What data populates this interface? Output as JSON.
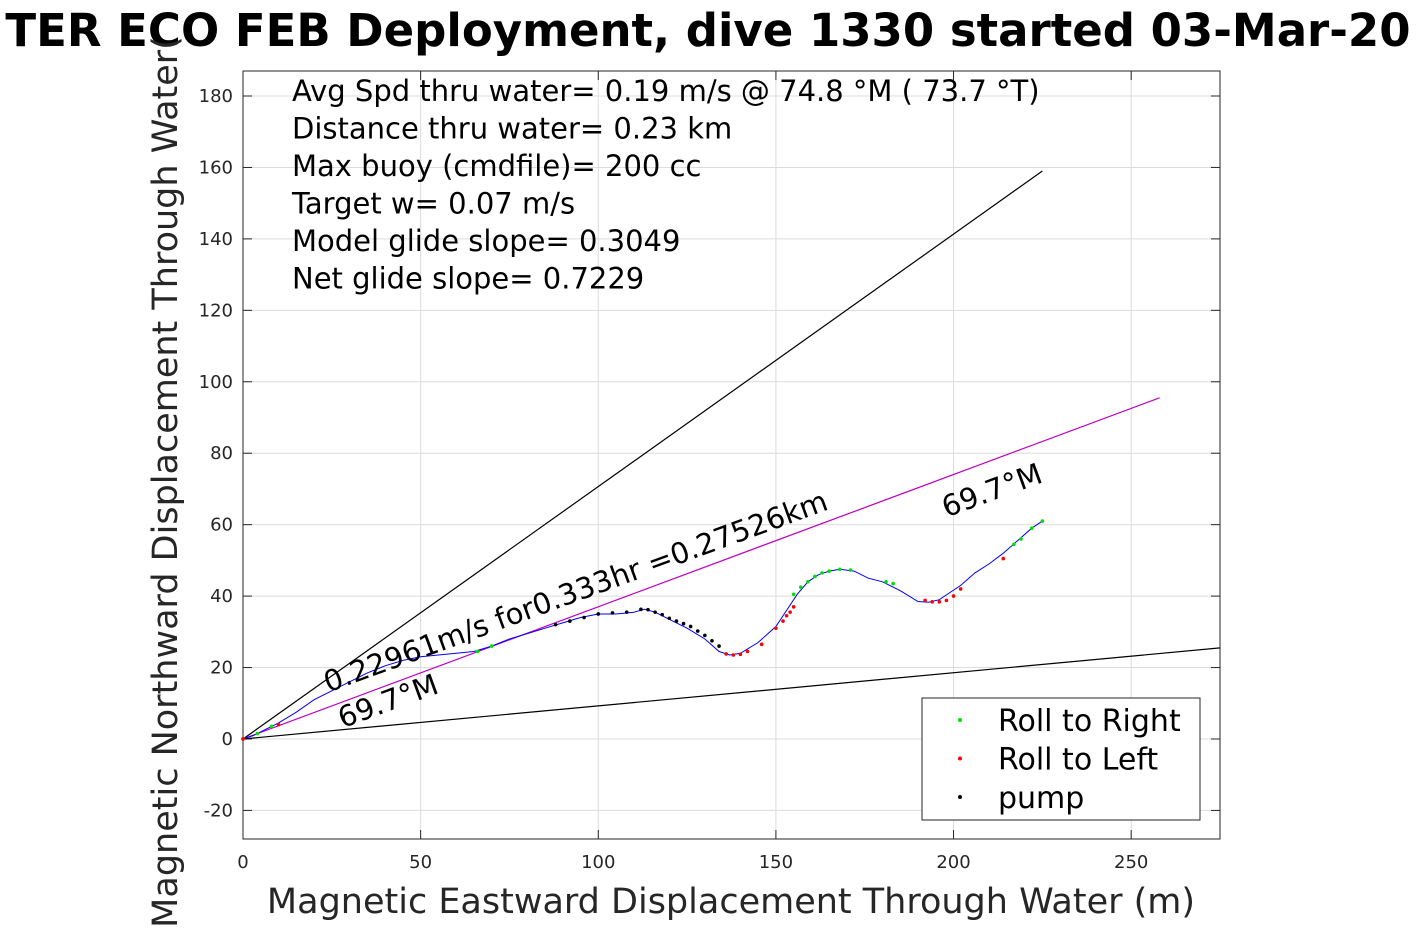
{
  "chart_data": {
    "type": "line",
    "title": "TER ECO FEB Deployment, dive 1330 started 03-Mar-20",
    "xlabel": "Magnetic Eastward Displacement Through Water (m)",
    "ylabel": "Magnetic Northward Displacement Through Water(",
    "xlim": [
      0,
      275
    ],
    "ylim": [
      -28,
      187
    ],
    "xticks": [
      0,
      50,
      100,
      150,
      200,
      250
    ],
    "yticks": [
      -20,
      0,
      20,
      40,
      60,
      80,
      100,
      120,
      140,
      160,
      180
    ],
    "grid": true,
    "legend_position": "bottom-right",
    "info_lines": [
      "Avg Spd thru water=  0.19 m/s @  74.8 °M ( 73.7 °T)",
      "Distance thru water=  0.23 km",
      "Max buoy (cmdfile)= 200 cc",
      "Target w= 0.07 m/s",
      "Model glide slope= 0.3049",
      "Net glide slope= 0.7229"
    ],
    "annotations": [
      {
        "text": "0.22961m/s for0.333hr =0.27526km",
        "x": 24,
        "y": 13,
        "angle_deg": 20.1
      },
      {
        "text": "69.7°M",
        "x": 28,
        "y": 3,
        "angle_deg": 20.1
      },
      {
        "text": "69.7°M",
        "x": 198,
        "y": 62,
        "angle_deg": 20.1
      }
    ],
    "lines": [
      {
        "name": "upper envelope",
        "color": "#000000",
        "x": [
          0,
          225
        ],
        "y": [
          0,
          159
        ]
      },
      {
        "name": "lower envelope",
        "color": "#000000",
        "x": [
          0,
          275
        ],
        "y": [
          0,
          25.5
        ]
      },
      {
        "name": "heading line",
        "color": "#c000c0",
        "x": [
          0,
          258
        ],
        "y": [
          0,
          95.5
        ]
      }
    ],
    "track": {
      "color": "#0000ff",
      "x": [
        0,
        3,
        6,
        10,
        15,
        20,
        25,
        30,
        35,
        40,
        45,
        50,
        55,
        60,
        65,
        70,
        75,
        80,
        85,
        90,
        95,
        100,
        105,
        110,
        113,
        116,
        120,
        125,
        130,
        134,
        137,
        140,
        145,
        150,
        153,
        156,
        159,
        162,
        165,
        168,
        172,
        176,
        180,
        185,
        190,
        193,
        196,
        199,
        202,
        206,
        210,
        214,
        218,
        222,
        225
      ],
      "y": [
        0,
        1,
        2.5,
        4.5,
        7.5,
        11,
        13.5,
        16,
        18.5,
        20.5,
        22,
        23,
        23.5,
        24,
        24.5,
        26,
        28,
        29.5,
        31,
        32.5,
        34,
        35,
        35,
        35.5,
        36.3,
        35.5,
        33.5,
        31,
        28,
        24.5,
        23.5,
        24,
        27,
        31.5,
        36,
        40.5,
        44,
        46,
        47,
        47.5,
        47,
        45,
        44,
        41.5,
        38.5,
        38.3,
        39,
        41,
        43,
        46.5,
        49,
        52,
        55.5,
        59,
        61
      ]
    },
    "series": [
      {
        "name": "Roll to Right",
        "color": "#00e000",
        "x": [
          0,
          4,
          8,
          66,
          70,
          155,
          157,
          159,
          161,
          163,
          165,
          168,
          171,
          181,
          183,
          217,
          219,
          222,
          225
        ],
        "y": [
          0,
          1.5,
          3.5,
          24.5,
          26,
          40.5,
          42.5,
          44,
          45.5,
          46.5,
          47,
          47.5,
          47.3,
          44,
          43.5,
          54.5,
          56,
          59,
          61
        ]
      },
      {
        "name": "Roll to Left",
        "color": "#ff0000",
        "x": [
          0,
          10,
          136,
          138,
          140,
          142,
          146,
          150,
          152,
          153,
          154,
          155,
          192,
          194,
          196,
          198,
          200,
          202,
          214
        ],
        "y": [
          0,
          4,
          23.8,
          23.5,
          23.7,
          24.5,
          26.5,
          31,
          33,
          34.5,
          35.5,
          37,
          38.8,
          38.4,
          38.4,
          38.8,
          40,
          42,
          50.5
        ]
      },
      {
        "name": "pump",
        "color": "#000000",
        "x": [
          88,
          92,
          96,
          100,
          104,
          108,
          112,
          114,
          116,
          118,
          120,
          122,
          124,
          126,
          128,
          130,
          132,
          134
        ],
        "y": [
          32,
          33,
          34,
          35,
          35.3,
          35.5,
          36.3,
          36.2,
          35.5,
          34.8,
          33.8,
          33,
          32.3,
          31.5,
          30.2,
          29,
          27.5,
          26
        ]
      }
    ]
  }
}
